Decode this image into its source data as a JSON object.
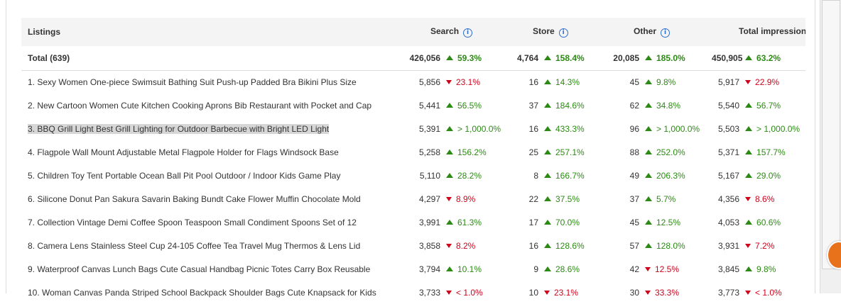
{
  "header": {
    "listings": "Listings",
    "search": "Search",
    "store": "Store",
    "other": "Other",
    "total": "Total impressions"
  },
  "total_row": {
    "label": "Total (639)",
    "search": "426,056",
    "search_chg": "59.3%",
    "search_dir": "up",
    "store": "4,764",
    "store_chg": "158.4%",
    "store_dir": "up",
    "other": "20,085",
    "other_chg": "185.0%",
    "other_dir": "up",
    "total": "450,905",
    "total_chg": "63.2%",
    "total_dir": "up"
  },
  "rows": [
    {
      "name": "1. Sexy Women One-piece Swimsuit Bathing Suit Push-up Padded Bra Bikini Plus Size",
      "search": "5,856",
      "search_chg": "23.1%",
      "search_dir": "down",
      "store": "16",
      "store_chg": "14.3%",
      "store_dir": "up",
      "other": "45",
      "other_chg": "9.8%",
      "other_dir": "up",
      "total": "5,917",
      "total_chg": "22.9%",
      "total_dir": "down"
    },
    {
      "name": "2. New Cartoon Women Cute Kitchen Cooking Aprons Bib Restaurant with Pocket and Cap",
      "search": "5,441",
      "search_chg": "56.5%",
      "search_dir": "up",
      "store": "37",
      "store_chg": "184.6%",
      "store_dir": "up",
      "other": "62",
      "other_chg": "34.8%",
      "other_dir": "up",
      "total": "5,540",
      "total_chg": "56.7%",
      "total_dir": "up"
    },
    {
      "name": "3. BBQ Grill Light Best Grill Lighting for Outdoor Barbecue with Bright LED Light",
      "search": "5,391",
      "search_chg": "> 1,000.0%",
      "search_dir": "up",
      "store": "16",
      "store_chg": "433.3%",
      "store_dir": "up",
      "other": "96",
      "other_chg": "> 1,000.0%",
      "other_dir": "up",
      "total": "5,503",
      "total_chg": "> 1,000.0%",
      "total_dir": "up"
    },
    {
      "name": "4. Flagpole Wall Mount Adjustable Metal Flagpole Holder for Flags Windsock Base",
      "search": "5,258",
      "search_chg": "156.2%",
      "search_dir": "up",
      "store": "25",
      "store_chg": "257.1%",
      "store_dir": "up",
      "other": "88",
      "other_chg": "252.0%",
      "other_dir": "up",
      "total": "5,371",
      "total_chg": "157.7%",
      "total_dir": "up"
    },
    {
      "name": "5. Children Toy Tent Portable Ocean Ball Pit Pool Outdoor / Indoor Kids Game Play",
      "search": "5,110",
      "search_chg": "28.2%",
      "search_dir": "up",
      "store": "8",
      "store_chg": "166.7%",
      "store_dir": "up",
      "other": "49",
      "other_chg": "206.3%",
      "other_dir": "up",
      "total": "5,167",
      "total_chg": "29.0%",
      "total_dir": "up"
    },
    {
      "name": "6. Silicone Donut Pan Sakura Savarin Baking Bundt Cake Flower Muffin Chocolate Mold",
      "search": "4,297",
      "search_chg": "8.9%",
      "search_dir": "down",
      "store": "22",
      "store_chg": "37.5%",
      "store_dir": "up",
      "other": "37",
      "other_chg": "5.7%",
      "other_dir": "up",
      "total": "4,356",
      "total_chg": "8.6%",
      "total_dir": "down"
    },
    {
      "name": "7. Collection Vintage Demi Coffee Spoon Teaspoon Small Condiment Spoons Set of 12",
      "search": "3,991",
      "search_chg": "61.3%",
      "search_dir": "up",
      "store": "17",
      "store_chg": "70.0%",
      "store_dir": "up",
      "other": "45",
      "other_chg": "12.5%",
      "other_dir": "up",
      "total": "4,053",
      "total_chg": "60.6%",
      "total_dir": "up"
    },
    {
      "name": "8. Camera Lens Stainless Steel Cup 24-105 Coffee Tea Travel Mug Thermos & Lens Lid",
      "search": "3,858",
      "search_chg": "8.2%",
      "search_dir": "down",
      "store": "16",
      "store_chg": "128.6%",
      "store_dir": "up",
      "other": "57",
      "other_chg": "128.0%",
      "other_dir": "up",
      "total": "3,931",
      "total_chg": "7.2%",
      "total_dir": "down"
    },
    {
      "name": "9. Waterproof Canvas Lunch Bags Cute Casual Handbag Picnic Totes Carry Box Reusable",
      "search": "3,794",
      "search_chg": "10.1%",
      "search_dir": "up",
      "store": "9",
      "store_chg": "28.6%",
      "store_dir": "up",
      "other": "42",
      "other_chg": "12.5%",
      "other_dir": "down",
      "total": "3,845",
      "total_chg": "9.8%",
      "total_dir": "up"
    },
    {
      "name": "10. Woman Canvas Panda Striped School Backpack Shoulder Bags Cute Knapsack for Kids",
      "search": "3,733",
      "search_chg": "< 1.0%",
      "search_dir": "down",
      "store": "10",
      "store_chg": "23.1%",
      "store_dir": "down",
      "other": "30",
      "other_chg": "33.3%",
      "other_dir": "down",
      "total": "3,773",
      "total_chg": "< 1.0%",
      "total_dir": "down"
    }
  ],
  "colors": {
    "up": "#2c8a14",
    "down": "#d0021b",
    "info": "#2d6fcf",
    "header_bg": "#f4f4f4",
    "highlight": "#d6d6d6"
  }
}
